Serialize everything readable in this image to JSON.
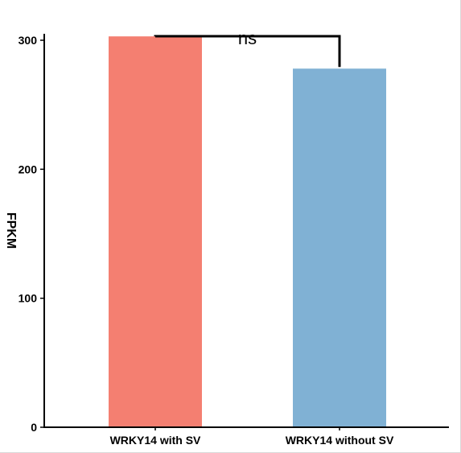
{
  "chart_data": {
    "type": "bar",
    "title": "",
    "xlabel": "",
    "ylabel": "FPKM",
    "ylim": [
      0,
      305
    ],
    "yticks": [
      0,
      100,
      200,
      300
    ],
    "categories": [
      "WRKY14 with SV",
      "WRKY14 without SV"
    ],
    "values": [
      303,
      278
    ],
    "colors": [
      "#f47f71",
      "#80b1d4"
    ],
    "grid": false,
    "legend": "none",
    "significance": {
      "label": "ns",
      "between": [
        0,
        1
      ]
    }
  }
}
